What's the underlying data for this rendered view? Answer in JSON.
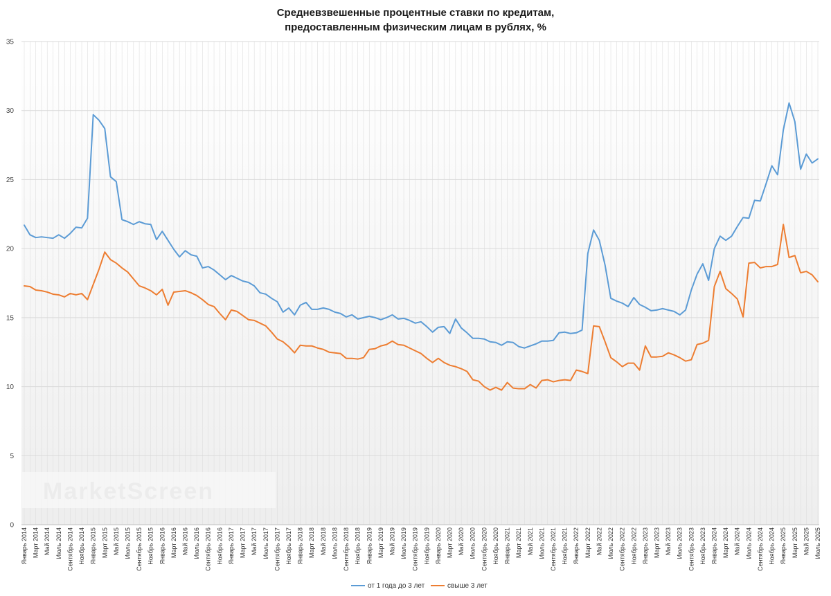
{
  "chart_data": {
    "type": "line",
    "title_line1": "Средневзвешенные процентные ставки по кредитам,",
    "title_line2": "предоставленным физическим лицам в рублях, %",
    "watermark": "MarketScreen",
    "ylim": [
      0,
      35
    ],
    "yticks": [
      0,
      5,
      10,
      15,
      20,
      25,
      30,
      35
    ],
    "xlabels": [
      "Январь 2014",
      "Март 2014",
      "Май 2014",
      "Июль 2014",
      "Сентябрь 2014",
      "Ноябрь 2014",
      "Январь 2015",
      "Март 2015",
      "Май 2015",
      "Июль 2015",
      "Сентябрь 2015",
      "Ноябрь 2015",
      "Январь 2016",
      "Март 2016",
      "Май 2016",
      "Июль 2016",
      "Сентябрь 2016",
      "Ноябрь 2016",
      "Январь 2017",
      "Март 2017",
      "Май 2017",
      "Июль 2017",
      "Сентябрь 2017",
      "Ноябрь 2017",
      "Январь 2018",
      "Март 2018",
      "Май 2018",
      "Июль 2018",
      "Сентябрь 2018",
      "Ноябрь 2018",
      "Январь 2019",
      "Март 2019",
      "Май 2019",
      "Июль 2019",
      "Сентябрь 2019",
      "Ноябрь 2019",
      "Январь 2020",
      "Март 2020",
      "Май 2020",
      "Июль 2020",
      "Сентябрь 2020",
      "Ноябрь 2020",
      "Январь 2021",
      "Март 2021",
      "Май 2021",
      "Июль 2021",
      "Сентябрь 2021",
      "Ноябрь 2021",
      "Январь 2022",
      "Март 2022",
      "Май 2022",
      "Июль 2022",
      "Сентябрь 2022",
      "Ноябрь 2022",
      "Январь 2023",
      "Март 2023",
      "Май 2023",
      "Июль 2023",
      "Сентябрь 2023",
      "Ноябрь 2023",
      "Январь 2024",
      "Март 2024",
      "Май 2024",
      "Июль 2024",
      "Сентябрь 2024",
      "Ноябрь 2024",
      "Январь 2025",
      "Март 2025",
      "Май 2025",
      "Июль 2025"
    ],
    "series": [
      {
        "name": "от 1 года до 3 лет",
        "color": "#5b9bd5",
        "values": [
          21.7,
          21.0,
          20.8,
          20.85,
          20.8,
          20.75,
          21.0,
          20.75,
          21.1,
          21.55,
          21.5,
          22.2,
          29.7,
          29.3,
          28.7,
          25.2,
          24.85,
          22.1,
          21.95,
          21.75,
          21.95,
          21.8,
          21.75,
          20.65,
          21.25,
          20.6,
          19.95,
          19.4,
          19.85,
          19.55,
          19.45,
          18.6,
          18.7,
          18.45,
          18.1,
          17.75,
          18.05,
          17.85,
          17.65,
          17.55,
          17.3,
          16.8,
          16.7,
          16.4,
          16.15,
          15.4,
          15.7,
          15.2,
          15.9,
          16.1,
          15.6,
          15.6,
          15.7,
          15.6,
          15.4,
          15.3,
          15.05,
          15.2,
          14.9,
          15.0,
          15.1,
          15.0,
          14.85,
          15.0,
          15.2,
          14.9,
          14.95,
          14.8,
          14.6,
          14.7,
          14.35,
          13.95,
          14.3,
          14.35,
          13.85,
          14.9,
          14.25,
          13.9,
          13.5,
          13.5,
          13.45,
          13.25,
          13.2,
          13.0,
          13.25,
          13.2,
          12.9,
          12.8,
          12.95,
          13.1,
          13.3,
          13.3,
          13.35,
          13.9,
          13.95,
          13.85,
          13.9,
          14.1,
          19.65,
          21.35,
          20.6,
          18.8,
          16.4,
          16.2,
          16.05,
          15.8,
          16.45,
          15.95,
          15.75,
          15.5,
          15.55,
          15.65,
          15.55,
          15.45,
          15.2,
          15.55,
          17.0,
          18.15,
          18.9,
          17.7,
          20.0,
          20.9,
          20.6,
          20.9,
          21.6,
          22.25,
          22.2,
          23.5,
          23.45,
          24.7,
          26.0,
          25.35,
          28.6,
          30.55,
          29.2,
          25.75,
          26.85,
          26.2,
          26.5
        ]
      },
      {
        "name": "свыше 3 лет",
        "color": "#ed7d31",
        "values": [
          17.3,
          17.25,
          17.0,
          16.95,
          16.85,
          16.7,
          16.65,
          16.5,
          16.75,
          16.65,
          16.75,
          16.3,
          17.4,
          18.5,
          19.75,
          19.2,
          18.95,
          18.6,
          18.3,
          17.8,
          17.3,
          17.15,
          16.95,
          16.65,
          17.05,
          15.9,
          16.85,
          16.9,
          16.95,
          16.8,
          16.6,
          16.3,
          15.95,
          15.8,
          15.3,
          14.85,
          15.55,
          15.45,
          15.15,
          14.85,
          14.8,
          14.6,
          14.4,
          13.95,
          13.45,
          13.25,
          12.9,
          12.45,
          13.0,
          12.95,
          12.95,
          12.8,
          12.7,
          12.5,
          12.45,
          12.4,
          12.05,
          12.05,
          12.0,
          12.1,
          12.7,
          12.75,
          12.95,
          13.05,
          13.3,
          13.05,
          13.0,
          12.8,
          12.6,
          12.4,
          12.05,
          11.75,
          12.05,
          11.75,
          11.55,
          11.45,
          11.3,
          11.1,
          10.5,
          10.4,
          10.0,
          9.75,
          9.95,
          9.75,
          10.3,
          9.9,
          9.85,
          9.85,
          10.15,
          9.9,
          10.45,
          10.5,
          10.35,
          10.45,
          10.5,
          10.45,
          11.2,
          11.1,
          10.95,
          14.4,
          14.35,
          13.25,
          12.1,
          11.8,
          11.45,
          11.7,
          11.7,
          11.2,
          12.95,
          12.15,
          12.15,
          12.2,
          12.45,
          12.3,
          12.1,
          11.85,
          11.95,
          13.05,
          13.15,
          13.35,
          17.25,
          18.35,
          17.1,
          16.75,
          16.35,
          15.05,
          18.95,
          19.0,
          18.6,
          18.7,
          18.7,
          18.85,
          21.75,
          19.35,
          19.5,
          18.25,
          18.35,
          18.1,
          17.6
        ]
      }
    ]
  }
}
